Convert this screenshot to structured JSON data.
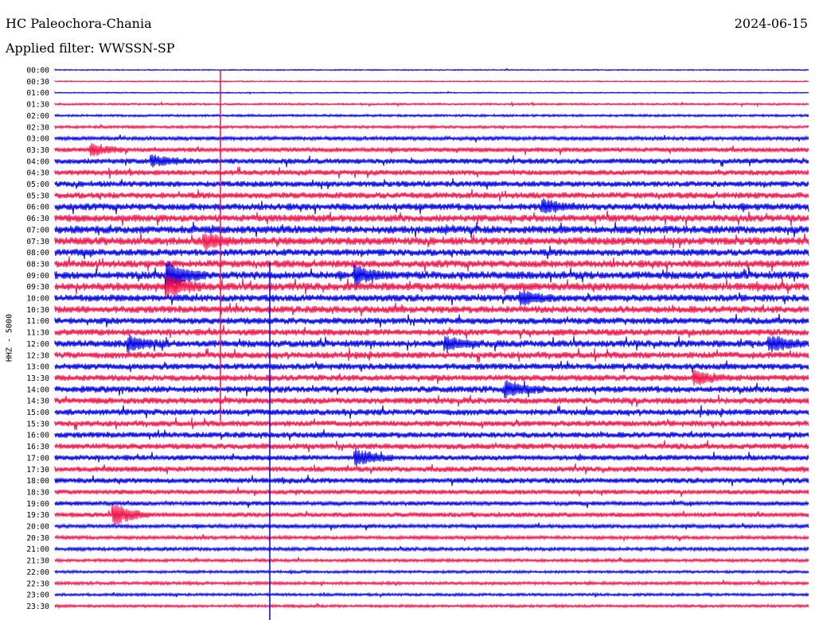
{
  "header": {
    "station": "HC Paleochora-Chania",
    "date": "2024-06-15",
    "filter": "Applied filter: WWSSN-SP"
  },
  "colors": {
    "even_trace": "#0000e6",
    "odd_trace": "#f0124a"
  },
  "chart_data": {
    "type": "line",
    "title": "HC Paleochora-Chania",
    "ylabel": "HHZ - 5000",
    "rows": [
      "00:00",
      "00:30",
      "01:00",
      "01:30",
      "02:00",
      "02:30",
      "03:00",
      "03:30",
      "04:00",
      "04:30",
      "05:00",
      "05:30",
      "06:00",
      "06:30",
      "07:00",
      "07:30",
      "08:00",
      "08:30",
      "09:00",
      "09:30",
      "10:00",
      "10:30",
      "11:00",
      "11:30",
      "12:00",
      "12:30",
      "13:00",
      "13:30",
      "14:00",
      "14:30",
      "15:00",
      "15:30",
      "16:00",
      "16:30",
      "17:00",
      "17:30",
      "18:00",
      "18:30",
      "19:00",
      "19:30",
      "20:00",
      "20:30",
      "21:00",
      "21:30",
      "22:00",
      "22:30",
      "23:00",
      "23:30"
    ],
    "activity_level": [
      0.15,
      0.15,
      0.15,
      0.25,
      0.3,
      0.35,
      0.5,
      0.6,
      0.7,
      0.7,
      0.75,
      0.8,
      0.9,
      0.9,
      1.0,
      1.0,
      0.9,
      0.95,
      1.0,
      1.0,
      0.9,
      0.9,
      0.85,
      0.85,
      0.9,
      0.85,
      0.8,
      0.8,
      0.85,
      0.8,
      0.8,
      0.75,
      0.75,
      0.75,
      0.7,
      0.7,
      0.7,
      0.6,
      0.55,
      0.6,
      0.5,
      0.45,
      0.45,
      0.4,
      0.35,
      0.4,
      0.35,
      0.35
    ],
    "events": [
      {
        "row": 7,
        "t": 0.05,
        "amp": 1.4
      },
      {
        "row": 8,
        "t": 0.13,
        "amp": 1.3
      },
      {
        "row": 15,
        "t": 0.2,
        "amp": 1.6
      },
      {
        "row": 18,
        "t": 0.15,
        "amp": 3.5
      },
      {
        "row": 18,
        "t": 0.4,
        "amp": 2.0
      },
      {
        "row": 19,
        "t": 0.15,
        "amp": 2.5
      },
      {
        "row": 24,
        "t": 0.1,
        "amp": 1.7
      },
      {
        "row": 24,
        "t": 0.95,
        "amp": 1.8
      },
      {
        "row": 27,
        "t": 0.85,
        "amp": 1.6
      },
      {
        "row": 28,
        "t": 0.6,
        "amp": 1.6
      },
      {
        "row": 34,
        "t": 0.4,
        "amp": 2.0
      },
      {
        "row": 39,
        "t": 0.08,
        "amp": 2.6
      },
      {
        "row": 12,
        "t": 0.65,
        "amp": 1.4
      },
      {
        "row": 20,
        "t": 0.62,
        "amp": 1.5
      },
      {
        "row": 24,
        "t": 0.52,
        "amp": 1.5
      }
    ]
  }
}
